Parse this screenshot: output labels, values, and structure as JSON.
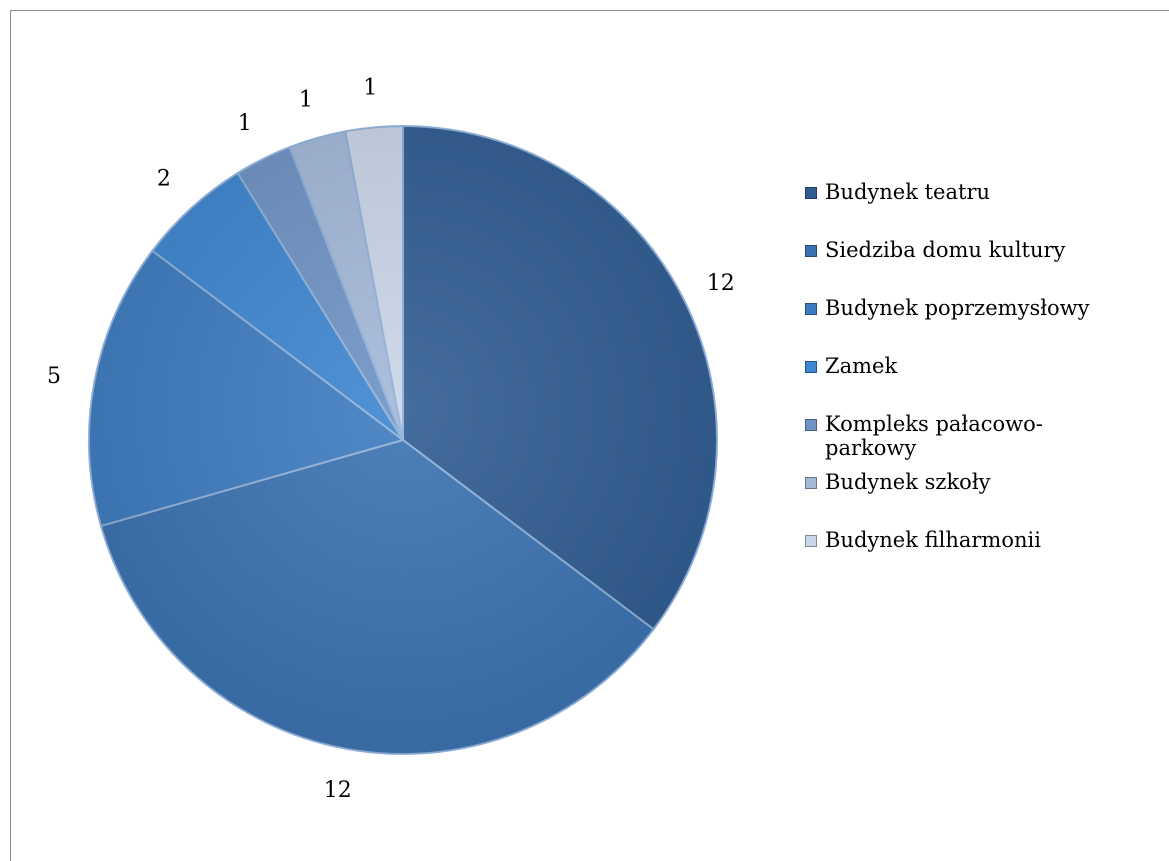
{
  "chart_data": {
    "type": "pie",
    "categories": [
      "Budynek teatru",
      "Siedziba domu kultury",
      "Budynek poprzemysłowy",
      "Zamek",
      "Kompleks pałacowo-\nparkowy",
      "Budynek szkoły",
      "Budynek filharmonii"
    ],
    "values": [
      12,
      12,
      5,
      2,
      1,
      1,
      1
    ],
    "data_labels": [
      "12",
      "12",
      "5",
      "2",
      "1",
      "1",
      "1"
    ],
    "colors": [
      "#2f5d92",
      "#3b72b2",
      "#3d7cc0",
      "#3e86d0",
      "#6f93c4",
      "#a3b8d8",
      "#c9d5e8"
    ],
    "legend_position": "right",
    "start_angle": "top",
    "direction": "clockwise"
  }
}
